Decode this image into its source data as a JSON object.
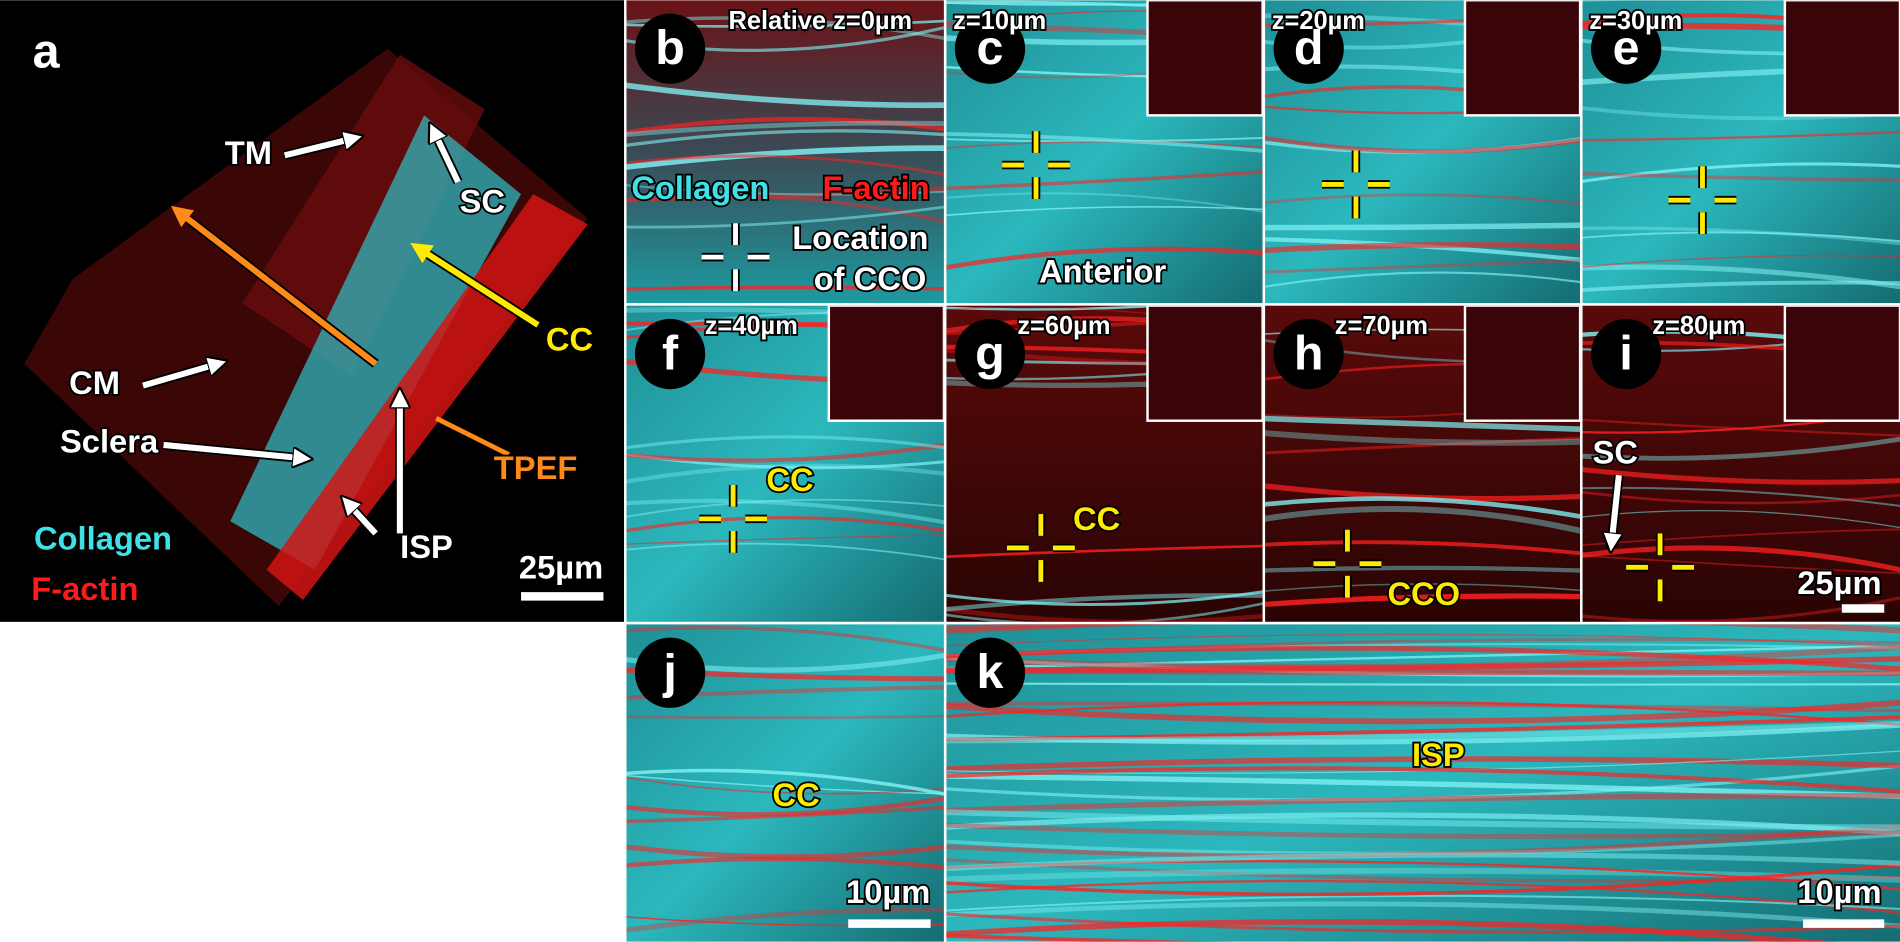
{
  "panels": {
    "a": {
      "letter": "a",
      "tm": "TM",
      "sc": "SC",
      "cc": "CC",
      "tpef": "TPEF",
      "cm": "CM",
      "sclera": "Sclera",
      "isp": "ISP",
      "collagen": "Collagen",
      "factin": "F-actin",
      "scale": "25µm"
    },
    "b": {
      "letter": "b",
      "depth": "Relative z=0µm",
      "collagen": "Collagen",
      "factin": "F-actin",
      "location": [
        "Location",
        "of CCO"
      ]
    },
    "c": {
      "letter": "c",
      "depth": "z=10µm",
      "anterior": "Anterior"
    },
    "d": {
      "letter": "d",
      "depth": "z=20µm"
    },
    "e": {
      "letter": "e",
      "depth": "z=30µm"
    },
    "f": {
      "letter": "f",
      "depth": "z=40µm",
      "cc": "CC"
    },
    "g": {
      "letter": "g",
      "depth": "z=60µm",
      "cc": "CC"
    },
    "h": {
      "letter": "h",
      "depth": "z=70µm",
      "cco": "CCO"
    },
    "i": {
      "letter": "i",
      "depth": "z=80µm",
      "sc": "SC",
      "scale": "25µm"
    },
    "j": {
      "letter": "j",
      "cc": "CC",
      "scale": "10µm"
    },
    "k": {
      "letter": "k",
      "isp": "ISP",
      "scale": "10µm"
    }
  }
}
